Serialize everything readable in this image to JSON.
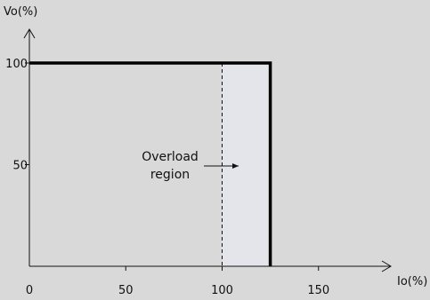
{
  "chart_data": {
    "type": "line",
    "xlabel": "Io(%)",
    "ylabel": "Vo(%)",
    "xlim": [
      0,
      160
    ],
    "ylim": [
      0,
      115
    ],
    "x_ticks": [
      0,
      50,
      100,
      150
    ],
    "y_ticks": [
      50,
      100
    ],
    "series": [
      {
        "x": [
          0,
          125,
          125
        ],
        "y": [
          100,
          100,
          0
        ]
      }
    ],
    "reference_lines": [
      {
        "orientation": "vertical",
        "x": 100,
        "style": "dashed"
      }
    ],
    "shaded_region": {
      "x": [
        100,
        125
      ],
      "y": [
        0,
        100
      ],
      "color": "#e3e5ea"
    },
    "annotation": {
      "lines": [
        "Overload",
        "region"
      ],
      "arrow_direction": "right"
    },
    "grid": false,
    "colors": {
      "background": "#d9d9da",
      "line": "#000000",
      "shade": "#e3e5ea"
    }
  }
}
